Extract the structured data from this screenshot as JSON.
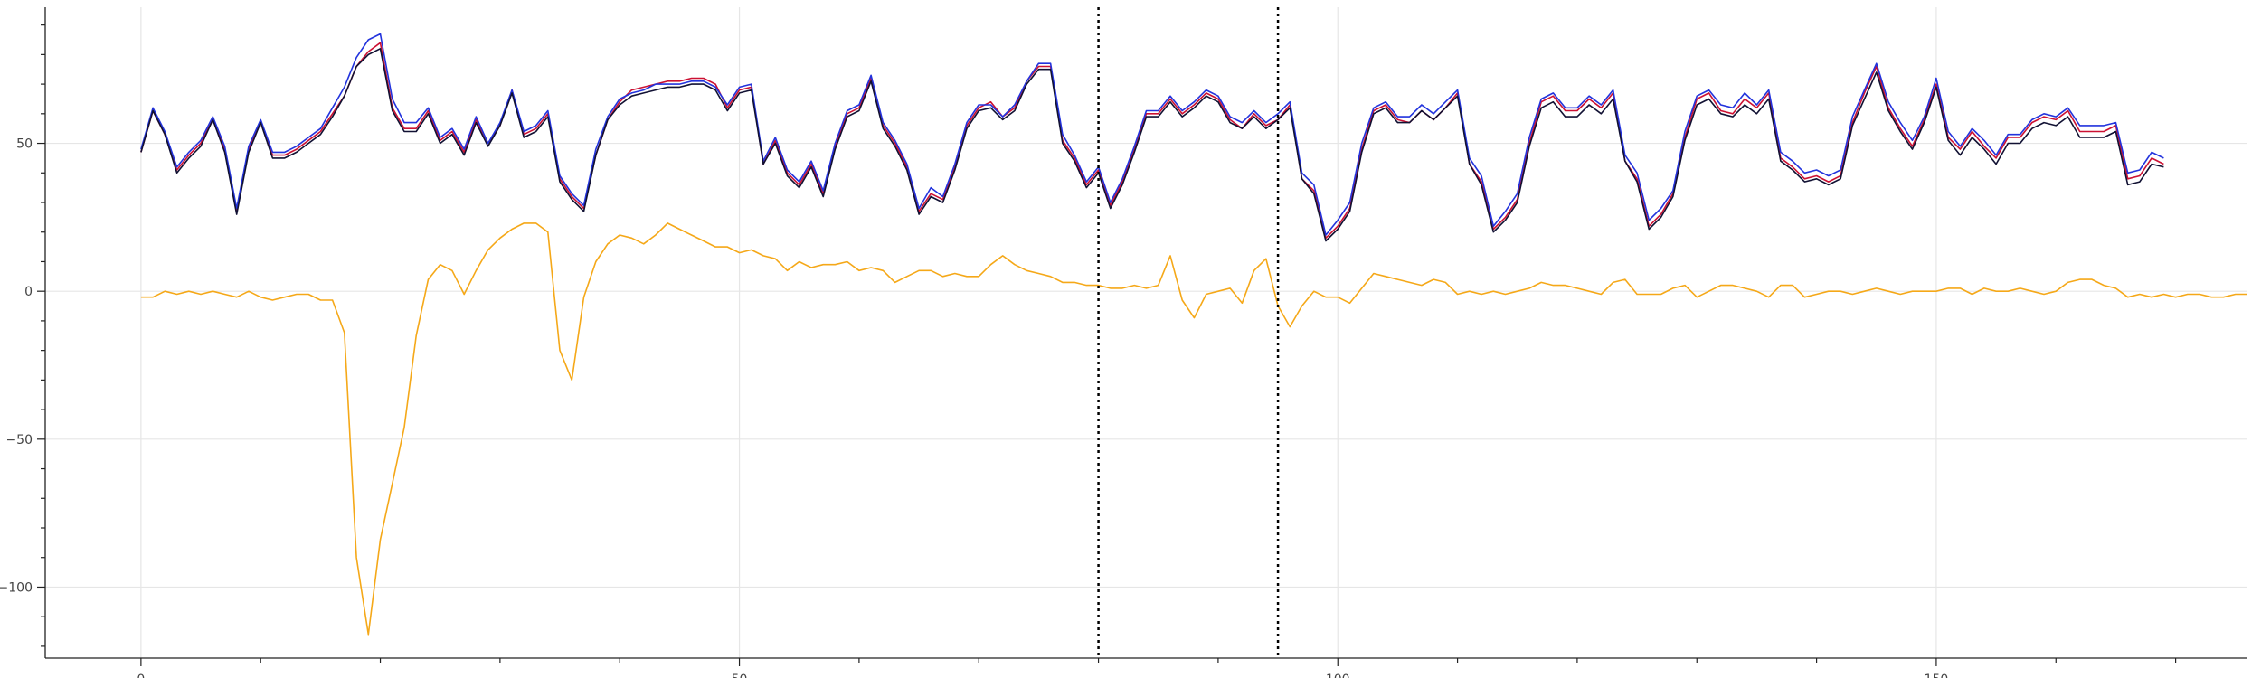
{
  "chart_data": {
    "type": "line",
    "title": "",
    "xlabel": "",
    "ylabel": "",
    "xlim": [
      -8,
      176
    ],
    "ylim": [
      -124,
      96
    ],
    "grid": true,
    "x_ticks": [
      0,
      50,
      100,
      150
    ],
    "y_ticks": [
      -100,
      -50,
      0,
      50
    ],
    "x_tick_labels": [
      "0",
      "50",
      "100",
      "150"
    ],
    "y_tick_labels": [
      "−100",
      "−50",
      "0",
      "50"
    ],
    "vlines": [
      80,
      95
    ],
    "x_start": 0,
    "series": [
      {
        "color": "#cc1133",
        "values": [
          47,
          61,
          53,
          41,
          46,
          50,
          58,
          48,
          27,
          48,
          57,
          46,
          46,
          48,
          51,
          54,
          60,
          66,
          76,
          81,
          84,
          62,
          55,
          55,
          61,
          51,
          54,
          47,
          58,
          50,
          56,
          68,
          53,
          55,
          60,
          38,
          32,
          28,
          46,
          58,
          64,
          68,
          69,
          70,
          71,
          71,
          72,
          72,
          70,
          62,
          68,
          69,
          43,
          51,
          40,
          36,
          43,
          33,
          49,
          60,
          62,
          72,
          56,
          50,
          42,
          27,
          33,
          31,
          42,
          56,
          62,
          64,
          59,
          62,
          71,
          76,
          76,
          51,
          45,
          36,
          41,
          29,
          37,
          48,
          60,
          60,
          65,
          60,
          63,
          67,
          65,
          58,
          55,
          60,
          56,
          58,
          63,
          38,
          34,
          18,
          22,
          28,
          48,
          61,
          63,
          58,
          57,
          61,
          58,
          62,
          67,
          43,
          37,
          21,
          25,
          31,
          50,
          64,
          66,
          61,
          61,
          65,
          62,
          67,
          44,
          38,
          22,
          26,
          33,
          52,
          65,
          67,
          61,
          60,
          65,
          62,
          67,
          45,
          42,
          38,
          39,
          37,
          39,
          57,
          67,
          76,
          62,
          55,
          49,
          58,
          70,
          52,
          48,
          54,
          49,
          45,
          52,
          52,
          57,
          59,
          58,
          61,
          54,
          54,
          54,
          56,
          38,
          39,
          45,
          43
        ],
        "name": ""
      },
      {
        "color": "#2233dd",
        "values": [
          48,
          62,
          54,
          42,
          47,
          51,
          59,
          49,
          28,
          49,
          58,
          47,
          47,
          49,
          52,
          55,
          62,
          69,
          79,
          85,
          87,
          65,
          57,
          57,
          62,
          52,
          55,
          48,
          59,
          50,
          57,
          68,
          54,
          56,
          61,
          39,
          33,
          29,
          48,
          59,
          65,
          67,
          68,
          70,
          70,
          70,
          71,
          71,
          69,
          63,
          69,
          70,
          44,
          52,
          41,
          37,
          44,
          34,
          50,
          61,
          63,
          73,
          57,
          51,
          43,
          28,
          35,
          32,
          43,
          57,
          63,
          63,
          59,
          63,
          71,
          77,
          77,
          53,
          46,
          37,
          42,
          30,
          38,
          49,
          61,
          61,
          66,
          61,
          64,
          68,
          66,
          59,
          57,
          61,
          57,
          60,
          64,
          40,
          36,
          19,
          24,
          30,
          50,
          62,
          64,
          59,
          59,
          63,
          60,
          64,
          68,
          45,
          39,
          22,
          27,
          33,
          52,
          65,
          67,
          62,
          62,
          66,
          63,
          68,
          46,
          40,
          24,
          28,
          34,
          54,
          66,
          68,
          63,
          62,
          67,
          63,
          68,
          47,
          44,
          40,
          41,
          39,
          41,
          59,
          68,
          77,
          64,
          57,
          51,
          59,
          72,
          54,
          49,
          55,
          51,
          46,
          53,
          53,
          58,
          60,
          59,
          62,
          56,
          56,
          56,
          57,
          40,
          41,
          47,
          45
        ],
        "name": ""
      },
      {
        "color": "#111133",
        "values": [
          47,
          61,
          53,
          40,
          45,
          49,
          58,
          47,
          26,
          47,
          57,
          45,
          45,
          47,
          50,
          53,
          59,
          66,
          76,
          80,
          82,
          61,
          54,
          54,
          60,
          50,
          53,
          46,
          57,
          49,
          56,
          67,
          52,
          54,
          59,
          37,
          31,
          27,
          46,
          58,
          63,
          66,
          67,
          68,
          69,
          69,
          70,
          70,
          68,
          61,
          67,
          68,
          43,
          50,
          39,
          35,
          42,
          32,
          48,
          59,
          61,
          71,
          55,
          49,
          41,
          26,
          32,
          30,
          41,
          55,
          61,
          62,
          58,
          61,
          70,
          75,
          75,
          50,
          44,
          35,
          40,
          28,
          36,
          47,
          59,
          59,
          64,
          59,
          62,
          66,
          64,
          57,
          55,
          59,
          55,
          58,
          62,
          38,
          33,
          17,
          21,
          27,
          47,
          60,
          62,
          57,
          57,
          61,
          58,
          62,
          66,
          43,
          36,
          20,
          24,
          30,
          49,
          62,
          64,
          59,
          59,
          63,
          60,
          65,
          44,
          37,
          21,
          25,
          32,
          51,
          63,
          65,
          60,
          59,
          63,
          60,
          65,
          44,
          41,
          37,
          38,
          36,
          38,
          56,
          65,
          74,
          61,
          54,
          48,
          57,
          69,
          51,
          46,
          52,
          48,
          43,
          50,
          50,
          55,
          57,
          56,
          59,
          52,
          52,
          52,
          54,
          36,
          37,
          43,
          42
        ],
        "name": ""
      },
      {
        "color": "#f5a818",
        "values": [
          -2,
          -2,
          0,
          -1,
          0,
          -1,
          0,
          -1,
          -2,
          0,
          -2,
          -3,
          -2,
          -1,
          -1,
          -3,
          -3,
          -14,
          -90,
          -116,
          -84,
          -65,
          -46,
          -15,
          4,
          9,
          7,
          -1,
          7,
          14,
          18,
          21,
          23,
          23,
          20,
          -20,
          -30,
          -2,
          10,
          16,
          19,
          18,
          16,
          19,
          23,
          21,
          19,
          17,
          15,
          15,
          13,
          14,
          12,
          11,
          7,
          10,
          8,
          9,
          9,
          10,
          7,
          8,
          7,
          3,
          5,
          7,
          7,
          5,
          6,
          5,
          5,
          9,
          12,
          9,
          7,
          6,
          5,
          3,
          3,
          2,
          2,
          1,
          1,
          2,
          1,
          2,
          12,
          -3,
          -9,
          -1,
          0,
          1,
          -4,
          7,
          11,
          -5,
          -12,
          -5,
          0,
          -2,
          -2,
          -4,
          1,
          6,
          5,
          4,
          3,
          2,
          4,
          3,
          -1,
          0,
          -1,
          0,
          -1,
          0,
          1,
          3,
          2,
          2,
          1,
          0,
          -1,
          3,
          4,
          -1,
          -1,
          -1,
          1,
          2,
          -2,
          0,
          2,
          2,
          1,
          0,
          -2,
          2,
          2,
          -2,
          -1,
          0,
          0,
          -1,
          0,
          1,
          0,
          -1,
          0,
          0,
          0,
          1,
          1,
          -1,
          1,
          0,
          0,
          1,
          0,
          -1,
          0,
          3,
          4,
          4,
          2,
          1,
          -2,
          -1,
          -2,
          -1,
          -2,
          -1,
          -1,
          -2,
          -2,
          -1,
          -1
        ]
      }
    ]
  }
}
